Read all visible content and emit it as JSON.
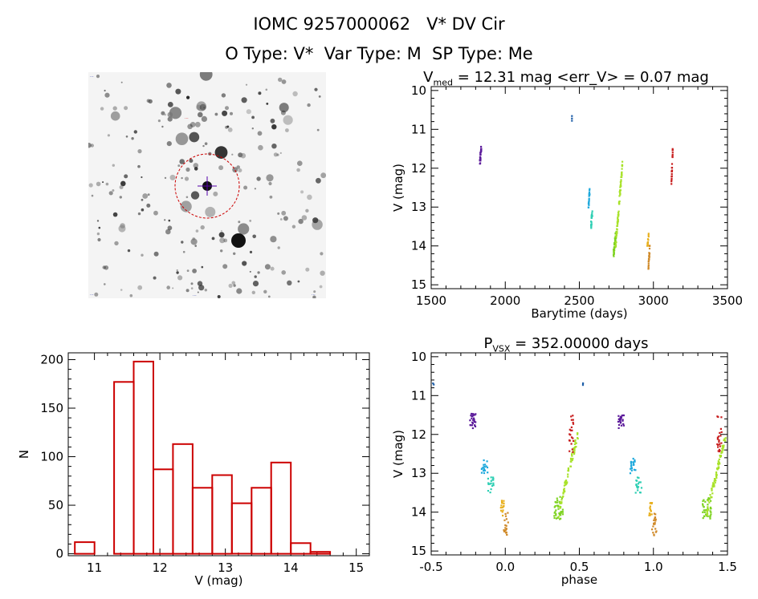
{
  "header": {
    "line1": "IOMC 9257000062   V* DV Cir",
    "line2": "O Type: V*  Var Type: M  SP Type: Me"
  },
  "image_panel": {
    "labels": {
      "top_left": "...",
      "center": "...",
      "bottom_left": "...",
      "bottom_center": "...",
      "bottom_right": "..."
    },
    "colors": {
      "circle": "#cc0000",
      "cross": "#5500aa"
    }
  },
  "chart_data": [
    {
      "type": "scatter",
      "name": "light-curve",
      "title_parts": {
        "v": "V",
        "sub": "med",
        "rest": " = 12.31 mag <err_V> = 0.07 mag"
      },
      "xlabel": "Barytime (days)",
      "ylabel": "V (mag)",
      "xlim": [
        1500,
        3500
      ],
      "ylim": [
        15.1,
        9.9
      ],
      "xticks": [
        1500,
        2000,
        2500,
        3000,
        3500
      ],
      "yticks": [
        10,
        11,
        12,
        13,
        14,
        15
      ],
      "y_inverted": true,
      "clusters": [
        {
          "color": "#5b1a9a",
          "x": [
            1828,
            1838
          ],
          "y": [
            11.45,
            11.85
          ],
          "n": 26
        },
        {
          "color": "#1f5fa8",
          "x": [
            2448,
            2452
          ],
          "y": [
            10.68,
            10.75
          ],
          "n": 3
        },
        {
          "color": "#1fa9dc",
          "x": [
            2560,
            2570
          ],
          "y": [
            12.6,
            13.0
          ],
          "n": 18
        },
        {
          "color": "#2fcfb4",
          "x": [
            2578,
            2588
          ],
          "y": [
            13.1,
            13.5
          ],
          "n": 18
        },
        {
          "color": "#7ed321",
          "x": [
            2730,
            2750
          ],
          "y": [
            13.6,
            14.2
          ],
          "n": 40
        },
        {
          "color": "#a8e22a",
          "x": [
            2745,
            2790
          ],
          "y": [
            11.9,
            14.0
          ],
          "n": 70
        },
        {
          "color": "#e8b01e",
          "x": [
            2958,
            2968
          ],
          "y": [
            13.7,
            14.1
          ],
          "n": 15
        },
        {
          "color": "#d08a2a",
          "x": [
            2965,
            2975
          ],
          "y": [
            14.0,
            14.6
          ],
          "n": 20
        },
        {
          "color": "#c81e1e",
          "x": [
            3120,
            3130
          ],
          "y": [
            11.5,
            12.5
          ],
          "n": 22
        }
      ]
    },
    {
      "type": "bar",
      "name": "histogram",
      "xlabel": "V (mag)",
      "ylabel": "N",
      "xlim": [
        10.6,
        15.2
      ],
      "ylim": [
        -2,
        207
      ],
      "xticks": [
        11,
        12,
        13,
        14,
        15
      ],
      "yticks": [
        0,
        50,
        100,
        150,
        200
      ],
      "bin_edges": [
        10.7,
        11.0,
        11.3,
        11.6,
        11.9,
        12.2,
        12.5,
        12.8,
        13.1,
        13.4,
        13.7,
        14.0,
        14.3,
        14.6
      ],
      "values": [
        12,
        0,
        177,
        198,
        87,
        113,
        68,
        81,
        52,
        68,
        94,
        11,
        2
      ],
      "bar_color": "#cc0000"
    },
    {
      "type": "scatter",
      "name": "phased-curve",
      "title_parts": {
        "p": "P",
        "sub": "VSX",
        "rest": " = 352.00000 days"
      },
      "xlabel": "phase",
      "ylabel": "V (mag)",
      "xlim": [
        -0.5,
        1.5
      ],
      "ylim": [
        15.1,
        9.9
      ],
      "xticks": [
        -0.5,
        0.0,
        0.5,
        1.0,
        1.5
      ],
      "xtick_labels": [
        "-0.5",
        "0.0",
        "0.5",
        "1.0",
        "1.5"
      ],
      "yticks": [
        10,
        11,
        12,
        13,
        14,
        15
      ],
      "y_inverted": true,
      "period_days": 352.0,
      "clusters": [
        {
          "color": "#5b1a9a",
          "x": [
            -0.24,
            -0.2
          ],
          "y": [
            11.45,
            11.85
          ],
          "n": 26
        },
        {
          "color": "#1f5fa8",
          "x": [
            -0.49,
            -0.48
          ],
          "y": [
            10.68,
            10.75
          ],
          "n": 2
        },
        {
          "color": "#1f5fa8",
          "x": [
            0.52,
            0.53
          ],
          "y": [
            10.68,
            10.75
          ],
          "n": 2
        },
        {
          "color": "#1fa9dc",
          "x": [
            -0.16,
            -0.12
          ],
          "y": [
            12.6,
            13.0
          ],
          "n": 18
        },
        {
          "color": "#2fcfb4",
          "x": [
            -0.12,
            -0.08
          ],
          "y": [
            13.1,
            13.5
          ],
          "n": 18
        },
        {
          "color": "#e8b01e",
          "x": [
            -0.03,
            -0.01
          ],
          "y": [
            13.7,
            14.1
          ],
          "n": 15
        },
        {
          "color": "#d08a2a",
          "x": [
            -0.01,
            0.02
          ],
          "y": [
            14.0,
            14.6
          ],
          "n": 20
        },
        {
          "color": "#7ed321",
          "x": [
            0.33,
            0.39
          ],
          "y": [
            13.6,
            14.2
          ],
          "n": 40
        },
        {
          "color": "#a8e22a",
          "x": [
            0.36,
            0.49
          ],
          "y": [
            12.0,
            14.0
          ],
          "n": 70
        },
        {
          "color": "#c81e1e",
          "x": [
            0.43,
            0.46
          ],
          "y": [
            11.5,
            12.5
          ],
          "n": 22
        },
        {
          "color": "#5b1a9a",
          "x": [
            0.76,
            0.8
          ],
          "y": [
            11.45,
            11.85
          ],
          "n": 26
        },
        {
          "color": "#1fa9dc",
          "x": [
            0.84,
            0.88
          ],
          "y": [
            12.6,
            13.0
          ],
          "n": 18
        },
        {
          "color": "#2fcfb4",
          "x": [
            0.88,
            0.92
          ],
          "y": [
            13.1,
            13.5
          ],
          "n": 18
        },
        {
          "color": "#e8b01e",
          "x": [
            0.97,
            0.99
          ],
          "y": [
            13.7,
            14.1
          ],
          "n": 15
        },
        {
          "color": "#d08a2a",
          "x": [
            0.99,
            1.02
          ],
          "y": [
            14.0,
            14.6
          ],
          "n": 20
        },
        {
          "color": "#7ed321",
          "x": [
            1.33,
            1.39
          ],
          "y": [
            13.6,
            14.2
          ],
          "n": 40
        },
        {
          "color": "#a8e22a",
          "x": [
            1.36,
            1.49
          ],
          "y": [
            12.0,
            14.0
          ],
          "n": 70
        },
        {
          "color": "#c81e1e",
          "x": [
            1.43,
            1.46
          ],
          "y": [
            11.5,
            12.5
          ],
          "n": 22
        }
      ]
    }
  ]
}
